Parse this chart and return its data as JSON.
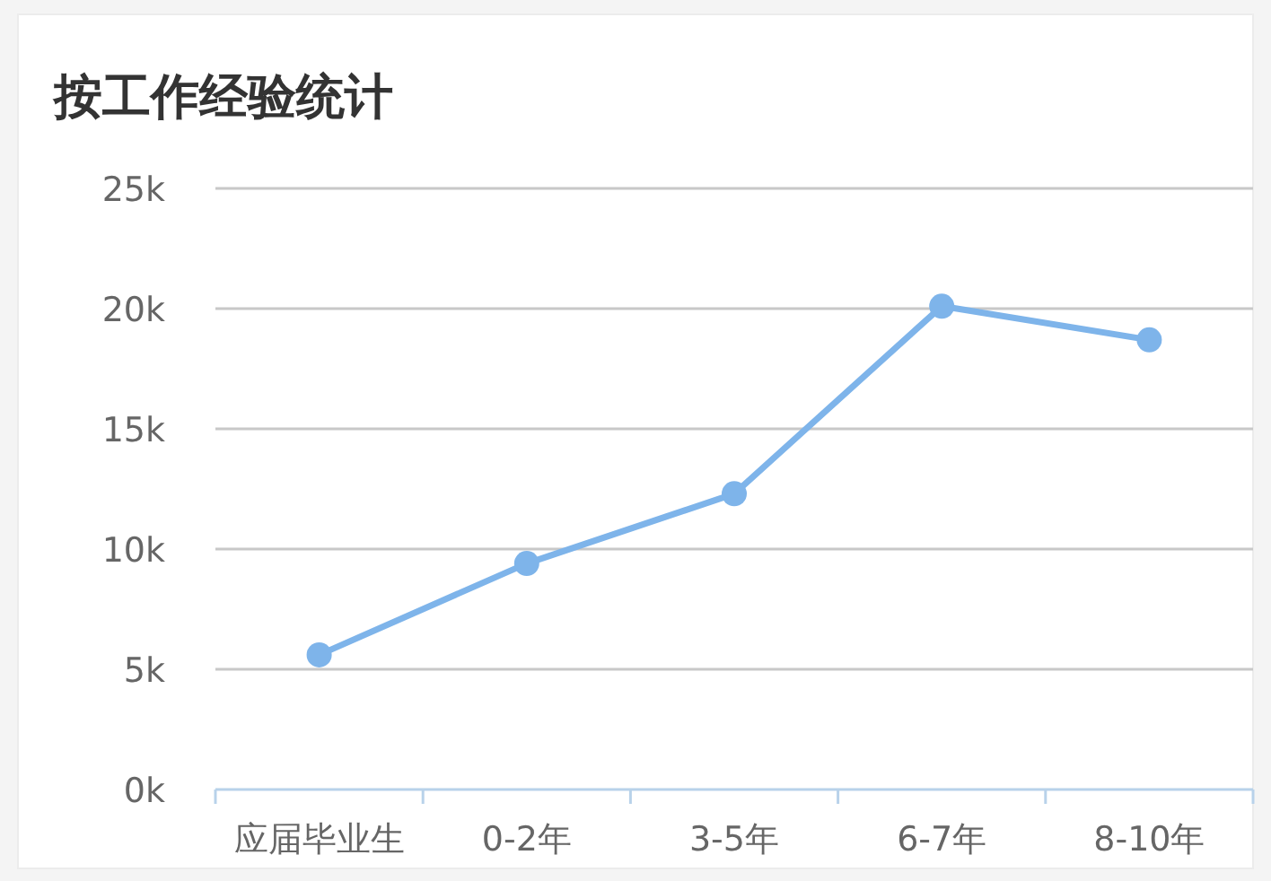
{
  "chart_data": {
    "type": "line",
    "title": "按工作经验统计",
    "categories": [
      "应届毕业生",
      "0-2年",
      "3-5年",
      "6-7年",
      "8-10年"
    ],
    "series": [
      {
        "color": "#7eb4ea",
        "values": [
          5600,
          9400,
          12300,
          20100,
          18700
        ]
      }
    ],
    "ylim": [
      0,
      25000
    ],
    "yticks": [
      {
        "value": 0,
        "label": "0k"
      },
      {
        "value": 5000,
        "label": "5k"
      },
      {
        "value": 10000,
        "label": "10k"
      },
      {
        "value": 15000,
        "label": "15k"
      },
      {
        "value": 20000,
        "label": "20k"
      },
      {
        "value": 25000,
        "label": "25k"
      }
    ],
    "grid": "y",
    "marker": "circle"
  }
}
